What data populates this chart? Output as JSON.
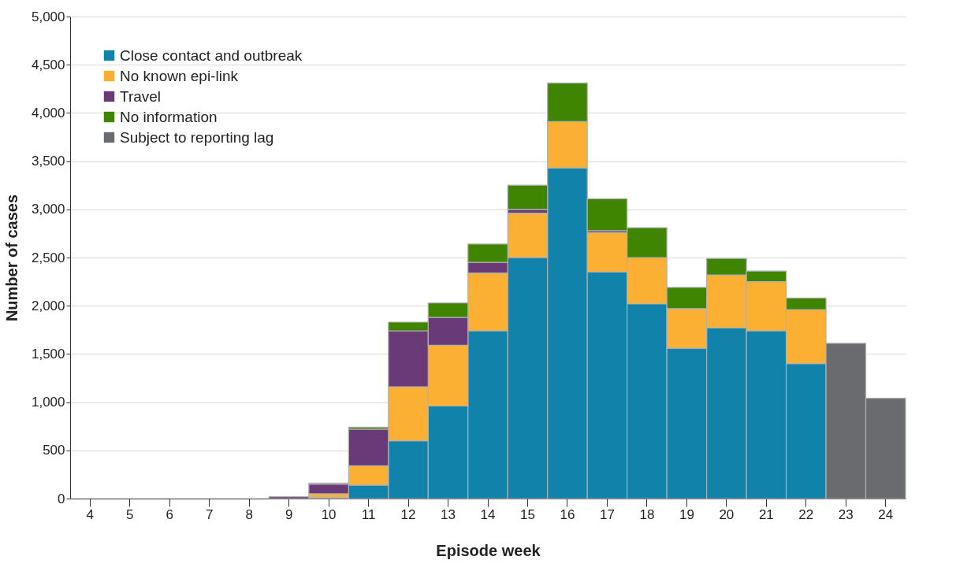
{
  "chart_data": {
    "type": "bar",
    "stacked": true,
    "xlabel": "Episode week",
    "ylabel": "Number of cases",
    "categories": [
      "4",
      "5",
      "6",
      "7",
      "8",
      "9",
      "10",
      "11",
      "12",
      "13",
      "14",
      "15",
      "16",
      "17",
      "18",
      "19",
      "20",
      "21",
      "22",
      "23",
      "24"
    ],
    "series": [
      {
        "name": "Close contact and outbreak",
        "color": "#1182aa",
        "values": [
          null,
          null,
          null,
          null,
          null,
          null,
          10,
          140,
          600,
          960,
          1740,
          2500,
          3430,
          2350,
          2020,
          1560,
          1770,
          1740,
          1400,
          null,
          null
        ]
      },
      {
        "name": "No known epi-link",
        "color": "#fbb034",
        "values": [
          null,
          null,
          null,
          null,
          null,
          null,
          40,
          200,
          560,
          630,
          600,
          460,
          480,
          410,
          480,
          410,
          550,
          510,
          560,
          null,
          null
        ]
      },
      {
        "name": "Travel",
        "color": "#6a3a76",
        "values": [
          null,
          null,
          null,
          null,
          null,
          20,
          100,
          380,
          580,
          290,
          110,
          40,
          null,
          20,
          null,
          null,
          null,
          null,
          null,
          null,
          null
        ]
      },
      {
        "name": "No information",
        "color": "#3f8502",
        "values": [
          null,
          null,
          null,
          null,
          null,
          null,
          10,
          20,
          90,
          150,
          190,
          250,
          400,
          330,
          310,
          220,
          170,
          110,
          120,
          null,
          null
        ]
      },
      {
        "name": "Subject to reporting lag",
        "color": "#6a6b6f",
        "values": [
          null,
          null,
          null,
          null,
          null,
          null,
          null,
          null,
          null,
          null,
          null,
          null,
          null,
          null,
          null,
          null,
          null,
          null,
          null,
          1610,
          1040
        ]
      }
    ],
    "ylim": [
      0,
      5000
    ],
    "yticks": [
      0,
      500,
      {
        "value": 1000,
        "label": "1,000"
      },
      {
        "value": 1500,
        "label": "1,500"
      },
      {
        "value": 2000,
        "label": "2,000"
      },
      {
        "value": 2500,
        "label": "2,500"
      },
      {
        "value": 3000,
        "label": "3,000"
      },
      {
        "value": 3500,
        "label": "3,500"
      },
      {
        "value": 4000,
        "label": "4,000"
      },
      {
        "value": 4500,
        "label": "4,500"
      },
      {
        "value": 5000,
        "label": "5,000"
      }
    ],
    "grid": "y",
    "legend": "top left"
  }
}
